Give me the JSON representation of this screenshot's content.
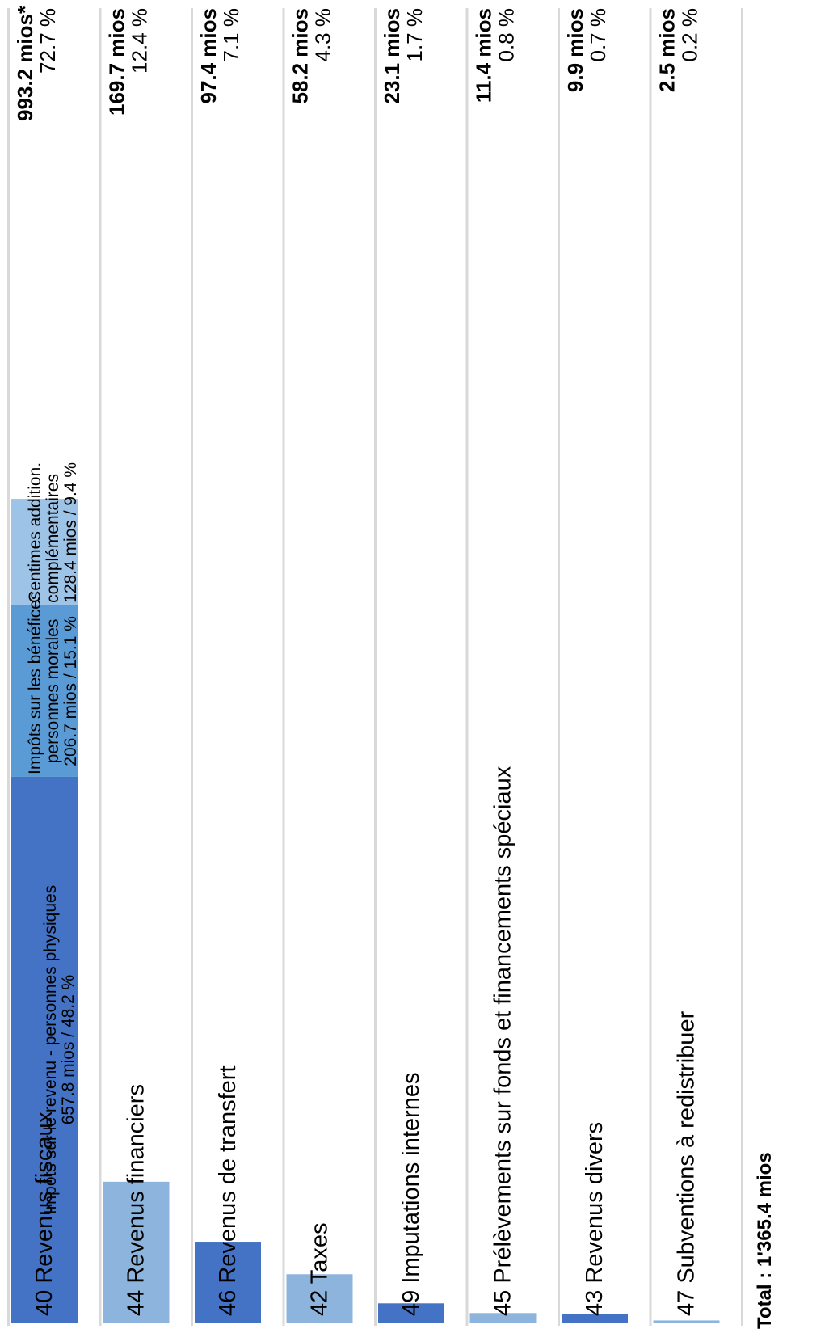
{
  "chart_data": {
    "type": "bar",
    "orientation": "rotated-horizontal-bars",
    "unit": "mios",
    "categories": [
      "40 Revenus fiscaux",
      "44 Revenus financiers",
      "46 Revenus de transfert",
      "42 Taxes",
      "49 Imputations internes",
      "45 Prélèvements sur fonds et financements spéciaux",
      "43 Revenus divers",
      "47 Subventions à redistribuer"
    ],
    "values": [
      993.2,
      169.7,
      97.4,
      58.2,
      23.1,
      11.4,
      9.9,
      2.5
    ],
    "percentages": [
      72.7,
      12.4,
      7.1,
      4.3,
      1.7,
      0.8,
      0.7,
      0.2
    ],
    "value_labels": [
      "993.2 mios",
      "169.7 mios",
      "97.4 mios",
      "58.2 mios",
      "23.1 mios",
      "11.4 mios",
      "9.9 mios",
      "2.5 mios"
    ],
    "pct_labels": [
      "72.7 %",
      "12.4 %",
      "7.1 %",
      "4.3 %",
      "1.7 %",
      "0.8 %",
      "0.7 %",
      "0.2 %"
    ],
    "first_value_marker": "*",
    "bar_colors": [
      "#4472c4",
      "#8db4dc",
      "#4472c4",
      "#8db4dc",
      "#4472c4",
      "#8db4dc",
      "#4472c4",
      "#8db4dc"
    ],
    "breakdown_of_first_bar": [
      {
        "lines": [
          "Impôts sur le revenu - personnes physiques",
          "657.8 mios / 48.2 %"
        ],
        "value": 657.8,
        "percent": 48.2,
        "color": "#4472c4"
      },
      {
        "lines": [
          "Impôts sur les bénéfices -",
          "personnes morales",
          "206.7 mios / 15.1 %"
        ],
        "value": 206.7,
        "percent": 15.1,
        "color": "#5b9bd5"
      },
      {
        "lines": [
          "Centimes addition.",
          "complémentaires",
          "128.4 mios / 9.4 %"
        ],
        "value": 128.4,
        "percent": 9.4,
        "color": "#9dc3e6"
      }
    ],
    "grid": true,
    "grid_color": "#d9d9d9",
    "total_label": "Total : 1'365.4 mios"
  }
}
